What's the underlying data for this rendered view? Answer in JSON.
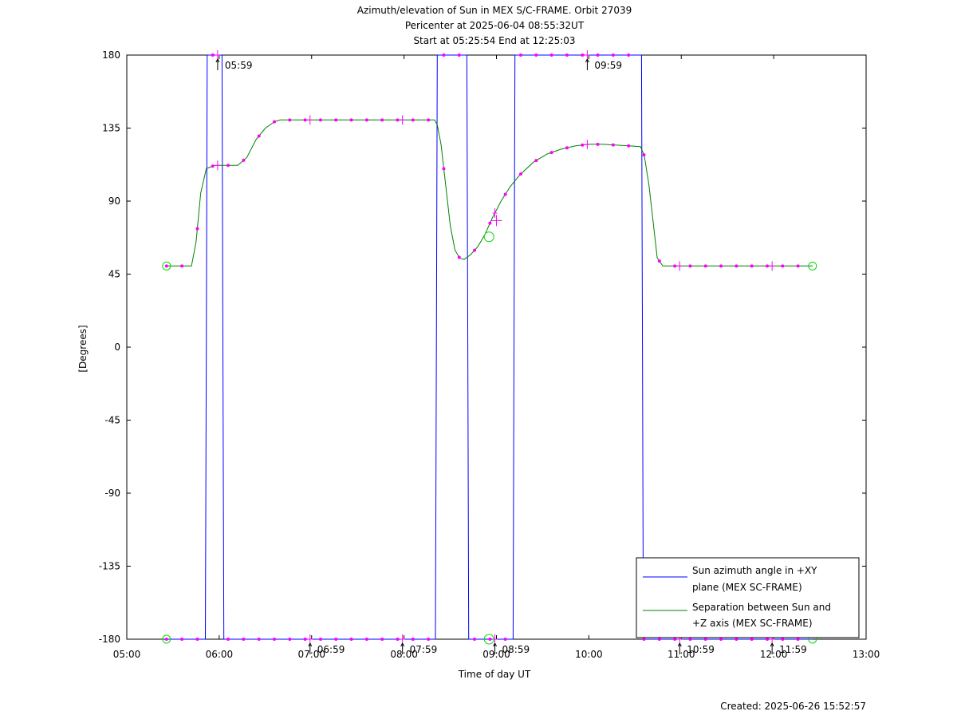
{
  "chart_data": {
    "type": "line",
    "title": "Azimuth/elevation of Sun in MEX S/C-FRAME.  Orbit 27039",
    "subtitle_lines": [
      "Pericenter at 2025-06-04 08:55:32UT",
      "Start at 05:25:54 End at 12:25:03"
    ],
    "xlabel": "Time of day UT",
    "ylabel": "[Degrees]",
    "xlim": [
      5.0,
      13.0
    ],
    "ylim": [
      -180,
      180
    ],
    "xticks": [
      5,
      6,
      7,
      8,
      9,
      10,
      11,
      12,
      13
    ],
    "xtick_labels": [
      "05:00",
      "06:00",
      "07:00",
      "08:00",
      "09:00",
      "10:00",
      "11:00",
      "12:00",
      "13:00"
    ],
    "yticks": [
      180,
      135,
      90,
      45,
      0,
      -45,
      -90,
      -135,
      -180
    ],
    "ytick_labels": [
      "180",
      "135",
      "90",
      "45",
      "0",
      "-45",
      "-90",
      "-135",
      "-180"
    ],
    "grid": false,
    "legend_position": "bottom-right",
    "series": [
      {
        "name": "Sun azimuth angle in +XY plane (MEX SC-FRAME)",
        "color": "#0000ff",
        "x": [
          5.43,
          5.85,
          5.86,
          5.87,
          6.03,
          6.04,
          6.05,
          8.34,
          8.35,
          8.36,
          8.68,
          8.69,
          8.7,
          9.18,
          9.19,
          9.2,
          10.57,
          10.58,
          10.59,
          12.42
        ],
        "y": [
          -180,
          -180,
          0,
          180,
          180,
          0,
          -180,
          -180,
          0,
          180,
          180,
          0,
          -180,
          -180,
          0,
          180,
          180,
          0,
          -180,
          -180
        ]
      },
      {
        "name": "Separation between Sun and +Z axis (MEX SC-FRAME)",
        "color": "#008000",
        "x": [
          5.43,
          5.6,
          5.7,
          5.75,
          5.8,
          5.86,
          5.95,
          6.05,
          6.2,
          6.3,
          6.4,
          6.5,
          6.6,
          6.66,
          6.8,
          7.0,
          7.5,
          8.0,
          8.33,
          8.36,
          8.4,
          8.45,
          8.5,
          8.55,
          8.6,
          8.65,
          8.72,
          8.8,
          8.88,
          8.95,
          9.05,
          9.15,
          9.25,
          9.4,
          9.55,
          9.7,
          9.85,
          10.0,
          10.15,
          10.3,
          10.45,
          10.56,
          10.6,
          10.65,
          10.7,
          10.74,
          10.8,
          11.0,
          11.5,
          12.0,
          12.42
        ],
        "y": [
          50,
          50,
          50,
          65,
          95,
          110,
          112,
          112,
          112,
          117,
          128,
          135,
          139,
          140,
          140,
          140,
          140,
          140,
          140,
          137,
          125,
          100,
          75,
          60,
          55,
          54,
          57,
          62,
          70,
          79,
          90,
          99,
          106,
          114,
          119,
          122,
          124,
          125,
          125,
          124.5,
          124,
          123.5,
          118,
          100,
          75,
          55,
          50,
          50,
          50,
          50,
          50
        ]
      }
    ],
    "ticked_time_labels": [
      {
        "x": 5.983,
        "label": "05:59"
      },
      {
        "x": 6.983,
        "label": "06:59"
      },
      {
        "x": 7.983,
        "label": "07:59"
      },
      {
        "x": 8.983,
        "label": "08:59"
      },
      {
        "x": 9.983,
        "label": "09:59"
      },
      {
        "x": 10.983,
        "label": "10:59"
      },
      {
        "x": 11.983,
        "label": "11:59"
      }
    ],
    "start_end_markers_x": [
      5.43,
      12.42
    ],
    "pericenter_marker": {
      "x": 8.92,
      "y": 68
    },
    "created_label": "Created: 2025-06-26 15:52:57"
  },
  "colors": {
    "azimuth": "#0000ff",
    "separation": "#008000",
    "point_marker": "#ff00ff",
    "start_end_marker": "#00dd00",
    "axes": "#000000"
  }
}
